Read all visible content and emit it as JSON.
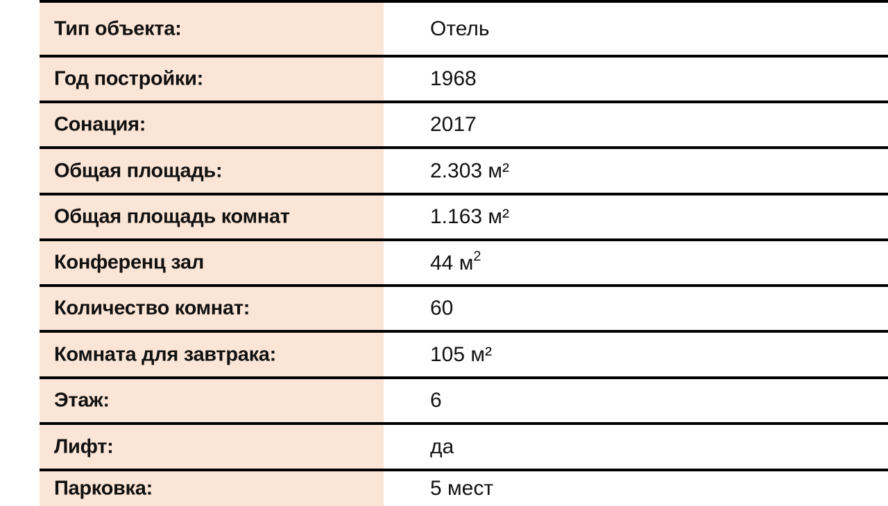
{
  "rows": [
    {
      "label": "Тип объекта:",
      "value": "Отель"
    },
    {
      "label": "Год постройки:",
      "value": "1968"
    },
    {
      "label": "Сонация:",
      "value": "2017"
    },
    {
      "label": "Общая площадь:",
      "value": "2.303 м²"
    },
    {
      "label": "Общая площадь комнат",
      "value": "1.163 м²"
    },
    {
      "label": "Конференц зал",
      "value": "44 м",
      "sup": "2"
    },
    {
      "label": "Количество комнат:",
      "value": "60"
    },
    {
      "label": "Комната для завтрака:",
      "value": "105 м²"
    },
    {
      "label": "Этаж:",
      "value": "6"
    },
    {
      "label": "Лифт:",
      "value": "да"
    },
    {
      "label": "Парковка:",
      "value": "5 мест"
    }
  ],
  "colors": {
    "label_bg": "#fbe5d6",
    "border": "#000000"
  }
}
